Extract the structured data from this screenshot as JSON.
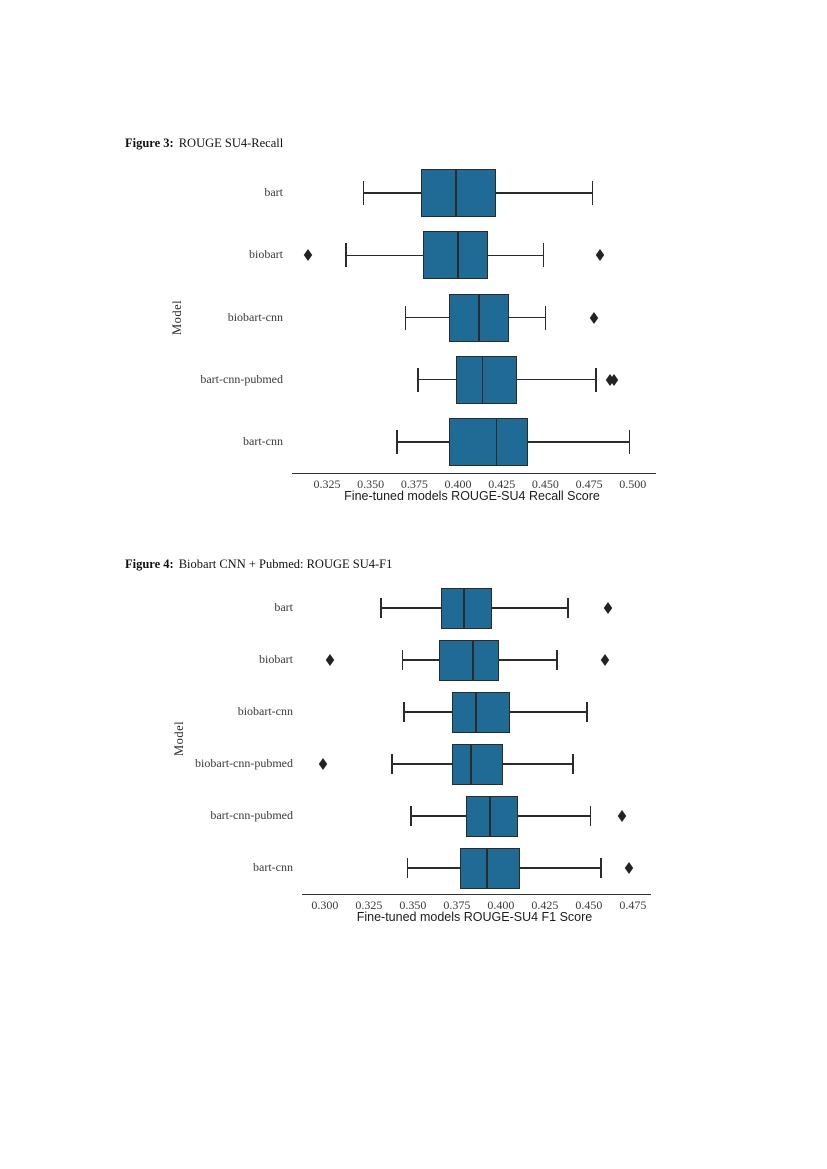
{
  "document": {
    "figure3_caption": {
      "label": "Figure 3:",
      "text": "ROUGE SU4-Recall"
    },
    "figure4_caption": {
      "label": "Figure 4:",
      "text": "Biobart CNN + Pubmed: ROUGE SU4-F1"
    }
  },
  "colors": {
    "background": "#ffffff",
    "box_fill": "#1f6b96",
    "box_edge": "#2b2b2b",
    "whisker": "#2b2b2b",
    "outlier": "#222222",
    "axis": "#333333",
    "tick_text": "#3a3a3a",
    "label_text": "#1c1c1c"
  },
  "chart_data": [
    {
      "id": "figure3",
      "type": "boxplot",
      "orientation": "horizontal",
      "title": "",
      "xlabel": "Fine-tuned models ROUGE-SU4 Recall Score",
      "ylabel": "Model",
      "categories": [
        "bart",
        "biobart",
        "biobart-cnn",
        "bart-cnn-pubmed",
        "bart-cnn"
      ],
      "xticks": [
        0.325,
        0.35,
        0.375,
        0.4,
        0.425,
        0.45,
        0.475,
        0.5
      ],
      "xtick_labels": [
        "0.325",
        "0.350",
        "0.375",
        "0.400",
        "0.425",
        "0.450",
        "0.475",
        "0.500"
      ],
      "xlim": [
        0.305,
        0.511
      ],
      "grid": false,
      "legend": false,
      "series": [
        {
          "model": "bart",
          "whisker_low": 0.346,
          "q1": 0.379,
          "median": 0.399,
          "q3": 0.422,
          "whisker_high": 0.477,
          "outliers": []
        },
        {
          "model": "biobart",
          "whisker_low": 0.336,
          "q1": 0.38,
          "median": 0.4,
          "q3": 0.417,
          "whisker_high": 0.449,
          "outliers": [
            0.314,
            0.481
          ]
        },
        {
          "model": "biobart-cnn",
          "whisker_low": 0.37,
          "q1": 0.395,
          "median": 0.412,
          "q3": 0.429,
          "whisker_high": 0.45,
          "outliers": [
            0.478
          ]
        },
        {
          "model": "bart-cnn-pubmed",
          "whisker_low": 0.377,
          "q1": 0.399,
          "median": 0.414,
          "q3": 0.434,
          "whisker_high": 0.479,
          "outliers": [
            0.487,
            0.489
          ]
        },
        {
          "model": "bart-cnn",
          "whisker_low": 0.365,
          "q1": 0.395,
          "median": 0.422,
          "q3": 0.44,
          "whisker_high": 0.498,
          "outliers": []
        }
      ]
    },
    {
      "id": "figure4",
      "type": "boxplot",
      "orientation": "horizontal",
      "title": "",
      "xlabel": "Fine-tuned models ROUGE-SU4 F1 Score",
      "ylabel": "Model",
      "categories": [
        "bart",
        "biobart",
        "biobart-cnn",
        "biobart-cnn-pubmed",
        "bart-cnn-pubmed",
        "bart-cnn"
      ],
      "xticks": [
        0.3,
        0.325,
        0.35,
        0.375,
        0.4,
        0.425,
        0.45,
        0.475
      ],
      "xtick_labels": [
        "0.300",
        "0.325",
        "0.350",
        "0.375",
        "0.400",
        "0.425",
        "0.450",
        "0.475"
      ],
      "xlim": [
        0.287,
        0.483
      ],
      "grid": false,
      "legend": false,
      "series": [
        {
          "model": "bart",
          "whisker_low": 0.332,
          "q1": 0.366,
          "median": 0.379,
          "q3": 0.395,
          "whisker_high": 0.438,
          "outliers": [
            0.461
          ]
        },
        {
          "model": "biobart",
          "whisker_low": 0.344,
          "q1": 0.365,
          "median": 0.384,
          "q3": 0.399,
          "whisker_high": 0.432,
          "outliers": [
            0.303,
            0.459
          ]
        },
        {
          "model": "biobart-cnn",
          "whisker_low": 0.345,
          "q1": 0.372,
          "median": 0.386,
          "q3": 0.405,
          "whisker_high": 0.449,
          "outliers": []
        },
        {
          "model": "biobart-cnn-pubmed",
          "whisker_low": 0.338,
          "q1": 0.372,
          "median": 0.383,
          "q3": 0.401,
          "whisker_high": 0.441,
          "outliers": [
            0.299
          ]
        },
        {
          "model": "bart-cnn-pubmed",
          "whisker_low": 0.349,
          "q1": 0.38,
          "median": 0.394,
          "q3": 0.41,
          "whisker_high": 0.451,
          "outliers": [
            0.469
          ]
        },
        {
          "model": "bart-cnn",
          "whisker_low": 0.347,
          "q1": 0.377,
          "median": 0.392,
          "q3": 0.411,
          "whisker_high": 0.457,
          "outliers": [
            0.473
          ]
        }
      ]
    }
  ]
}
